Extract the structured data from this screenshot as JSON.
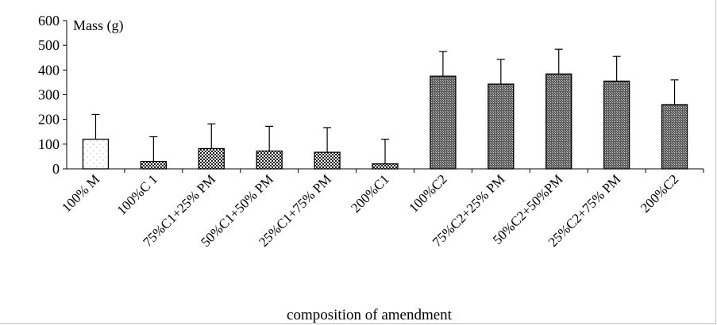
{
  "chart_data": {
    "type": "bar",
    "ylabel": "Mass (g)",
    "xlabel": "composition of amendment",
    "ylim": [
      0,
      600
    ],
    "yticks": [
      0,
      100,
      200,
      300,
      400,
      500,
      600
    ],
    "grid": false,
    "categories": [
      "100% M",
      "100%C 1",
      "75%C1+25% PM",
      "50%C1+50% PM",
      "25%C1+75% PM",
      "200%C1",
      "100%C2",
      "75%C2+25% PM",
      "50%C2+50%PM",
      "25%C2+75% PM",
      "200%C2"
    ],
    "values": [
      120,
      30,
      82,
      72,
      67,
      20,
      375,
      343,
      384,
      355,
      260
    ],
    "errors": [
      100,
      100,
      100,
      100,
      100,
      100,
      100,
      100,
      100,
      100,
      100
    ],
    "patterns": [
      "dots",
      "checker",
      "checker",
      "checker",
      "checker",
      "checker",
      "crosshatch",
      "crosshatch",
      "crosshatch",
      "crosshatch",
      "crosshatch"
    ],
    "colors": {
      "bar_outline": "#000000",
      "axis": "#000000",
      "fill_dark": "#3a3a3a",
      "fill_light": "#ffffff"
    }
  }
}
